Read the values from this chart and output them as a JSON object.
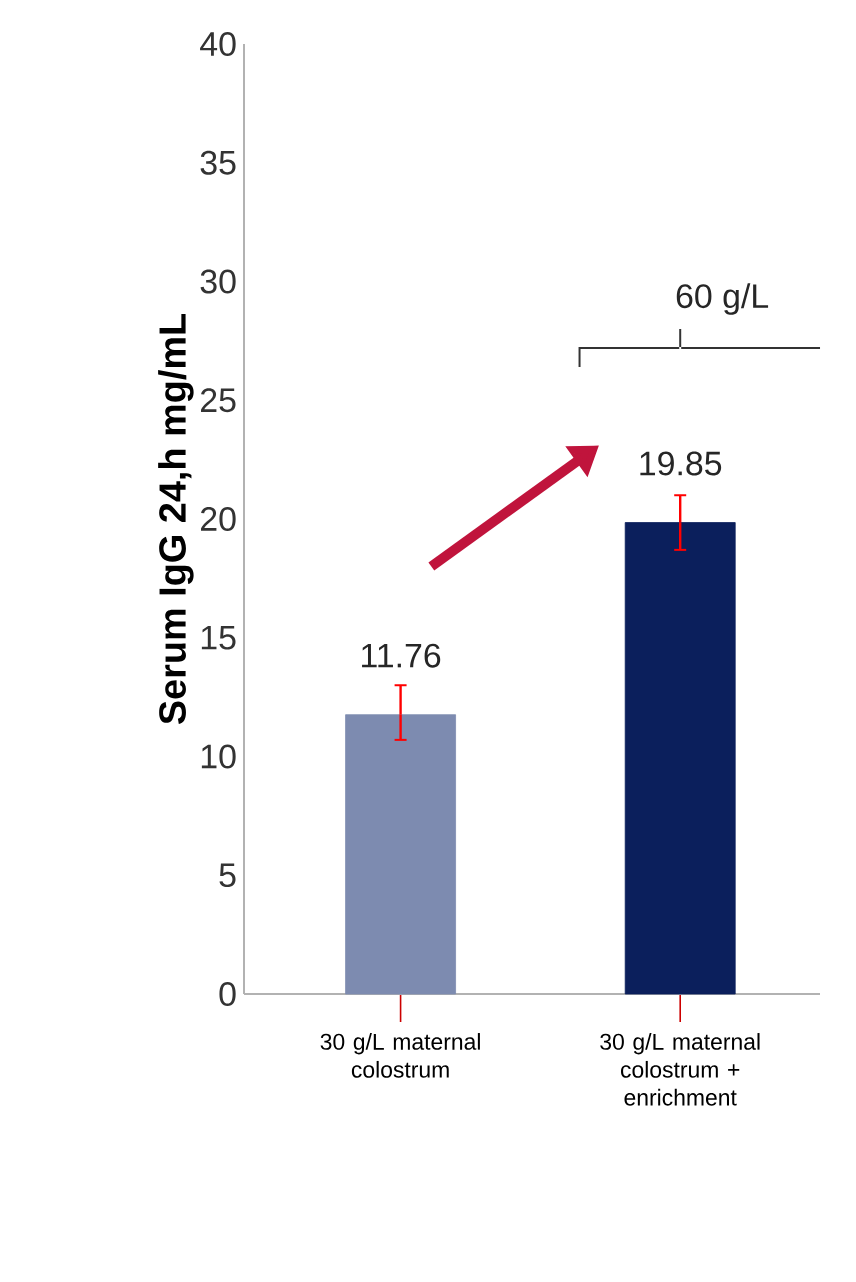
{
  "chart_data": {
    "type": "bar",
    "ylabel": "Serum IgG 24,h  mg/mL",
    "categories": [
      "30 g/L maternal colostrum",
      "30 g/L maternal colostrum + enrichment"
    ],
    "values": [
      11.76,
      19.85
    ],
    "colors": [
      "#7d8bb0",
      "#0b1f5c"
    ],
    "errors": [
      [
        10.7,
        13.0
      ],
      [
        18.7,
        21.0
      ]
    ],
    "data_labels": true,
    "ylim": [
      0,
      40
    ],
    "yticks": [
      0,
      5,
      10,
      15,
      20,
      25,
      30,
      35,
      40
    ],
    "annotations": [
      "60 g/L"
    ]
  }
}
